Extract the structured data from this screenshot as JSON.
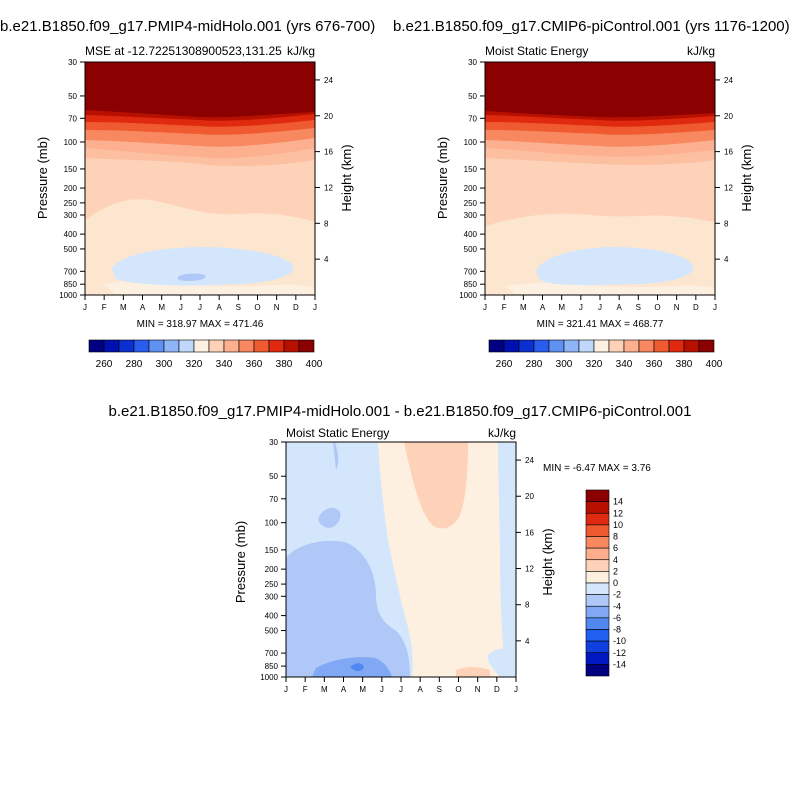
{
  "chart_data": [
    {
      "type": "heatmap",
      "title": "b.e21.B1850.f09_g17.PMIP4-midHolo.001 (yrs 676-700)",
      "subtitle_left": "MSE at -12.72251308900523,131.25",
      "subtitle_right": "kJ/kg",
      "xlabel": "",
      "ylabel": "Pressure (mb)",
      "ylabel_right": "Height (km)",
      "x_ticks": [
        "J",
        "F",
        "M",
        "A",
        "M",
        "J",
        "J",
        "A",
        "S",
        "O",
        "N",
        "D",
        "J"
      ],
      "y_ticks": [
        30,
        50,
        70,
        100,
        150,
        200,
        250,
        300,
        400,
        500,
        700,
        850,
        1000
      ],
      "y_right_ticks": [
        24,
        20,
        16,
        12,
        8,
        4
      ],
      "stats": "MIN = 318.97 MAX = 471.46",
      "colorbar_ticks": [
        260,
        280,
        300,
        320,
        340,
        360,
        380,
        400
      ]
    },
    {
      "type": "heatmap",
      "title": "b.e21.B1850.f09_g17.CMIP6-piControl.001 (yrs 1176-1200)",
      "subtitle_left": "Moist Static Energy",
      "subtitle_right": "kJ/kg",
      "xlabel": "",
      "ylabel": "Pressure (mb)",
      "ylabel_right": "Height (km)",
      "x_ticks": [
        "J",
        "F",
        "M",
        "A",
        "M",
        "J",
        "J",
        "A",
        "S",
        "O",
        "N",
        "D",
        "J"
      ],
      "y_ticks": [
        30,
        50,
        70,
        100,
        150,
        200,
        250,
        300,
        400,
        500,
        700,
        850,
        1000
      ],
      "y_right_ticks": [
        24,
        20,
        16,
        12,
        8,
        4
      ],
      "stats": "MIN = 321.41 MAX = 468.77",
      "colorbar_ticks": [
        260,
        280,
        300,
        320,
        340,
        360,
        380,
        400
      ]
    },
    {
      "type": "heatmap",
      "title": "b.e21.B1850.f09_g17.PMIP4-midHolo.001 - b.e21.B1850.f09_g17.CMIP6-piControl.001",
      "subtitle_left": "Moist Static Energy",
      "subtitle_right": "kJ/kg",
      "xlabel": "",
      "ylabel": "Pressure (mb)",
      "ylabel_right": "Height (km)",
      "x_ticks": [
        "J",
        "F",
        "M",
        "A",
        "M",
        "J",
        "J",
        "A",
        "S",
        "O",
        "N",
        "D",
        "J"
      ],
      "y_ticks": [
        30,
        50,
        70,
        100,
        150,
        200,
        250,
        300,
        400,
        500,
        700,
        850,
        1000
      ],
      "y_right_ticks": [
        24,
        20,
        16,
        12,
        8,
        4
      ],
      "stats": "MIN =  -6.47 MAX =   3.76",
      "colorbar_ticks": [
        14,
        12,
        10,
        8,
        6,
        4,
        2,
        0,
        -2,
        -4,
        -6,
        -8,
        -10,
        -12,
        -14
      ]
    }
  ],
  "colors": {
    "abs_scale": [
      "#000080",
      "#0010b0",
      "#0a30d0",
      "#2a5cf0",
      "#6090f0",
      "#90b4f8",
      "#c0d8fc",
      "#fdf0e0",
      "#fdd2b8",
      "#fcb090",
      "#f88860",
      "#f05a30",
      "#e02a10",
      "#b81000",
      "#8b0000"
    ],
    "diff_scale": [
      "#000080",
      "#0018c0",
      "#1040e0",
      "#2060f0",
      "#5088f0",
      "#80a8f4",
      "#b0c8f8",
      "#d4e6fc",
      "#fdf0e0",
      "#fdd2b8",
      "#fcae8c",
      "#f88860",
      "#f05a30",
      "#e02a10",
      "#b81000",
      "#8b0000"
    ]
  }
}
